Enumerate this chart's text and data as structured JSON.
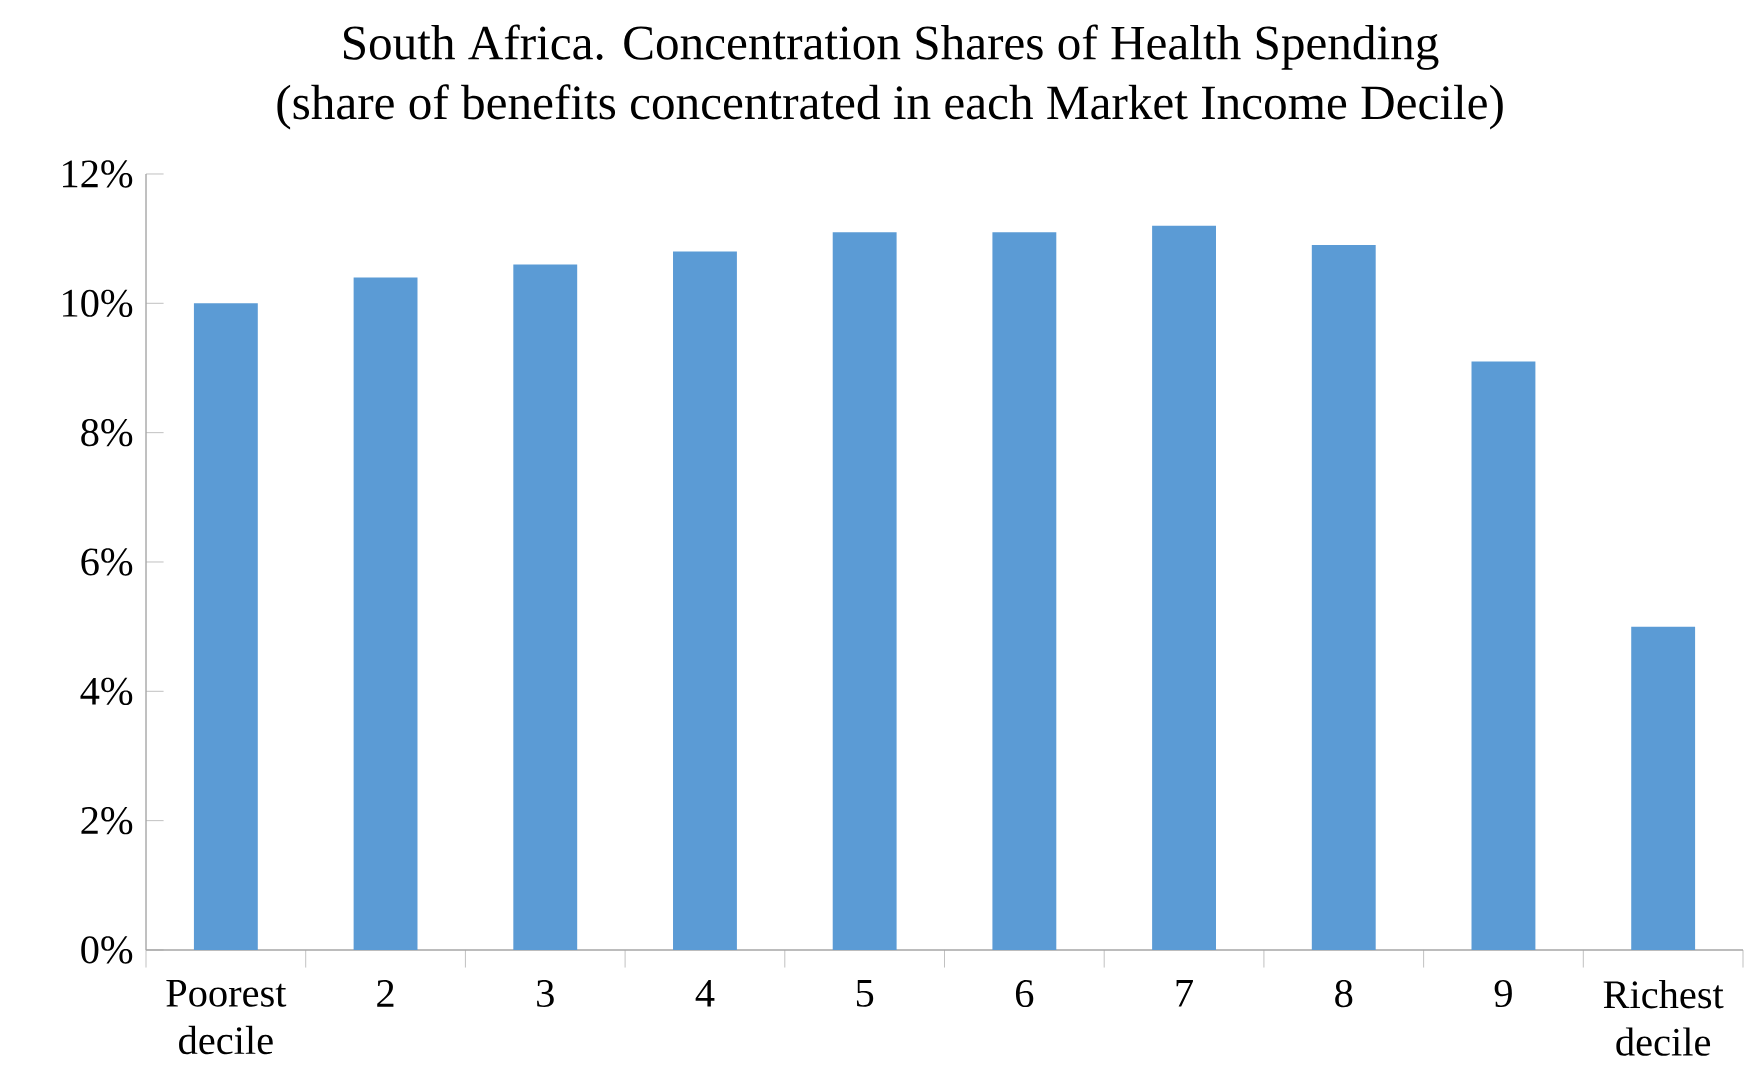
{
  "chart_data": {
    "type": "bar",
    "title": "South Africa. Concentration Shares of Health Spending",
    "subtitle": "(share of benefits concentrated in each Market Income Decile)",
    "categories": [
      "Poorest decile",
      "2",
      "3",
      "4",
      "5",
      "6",
      "7",
      "8",
      "9",
      "Richest decile"
    ],
    "values": [
      10.0,
      10.4,
      10.6,
      10.8,
      11.1,
      11.1,
      11.2,
      10.9,
      9.1,
      5.0
    ],
    "color": "#5b9bd5",
    "ylim": [
      0,
      12
    ],
    "yticks": [
      {
        "value": 0,
        "label": "0%"
      },
      {
        "value": 2,
        "label": "2%"
      },
      {
        "value": 4,
        "label": "4%"
      },
      {
        "value": 6,
        "label": "6%"
      },
      {
        "value": 8,
        "label": "8%"
      },
      {
        "value": 10,
        "label": "10%"
      },
      {
        "value": 12,
        "label": "12%"
      }
    ],
    "grid": false
  }
}
